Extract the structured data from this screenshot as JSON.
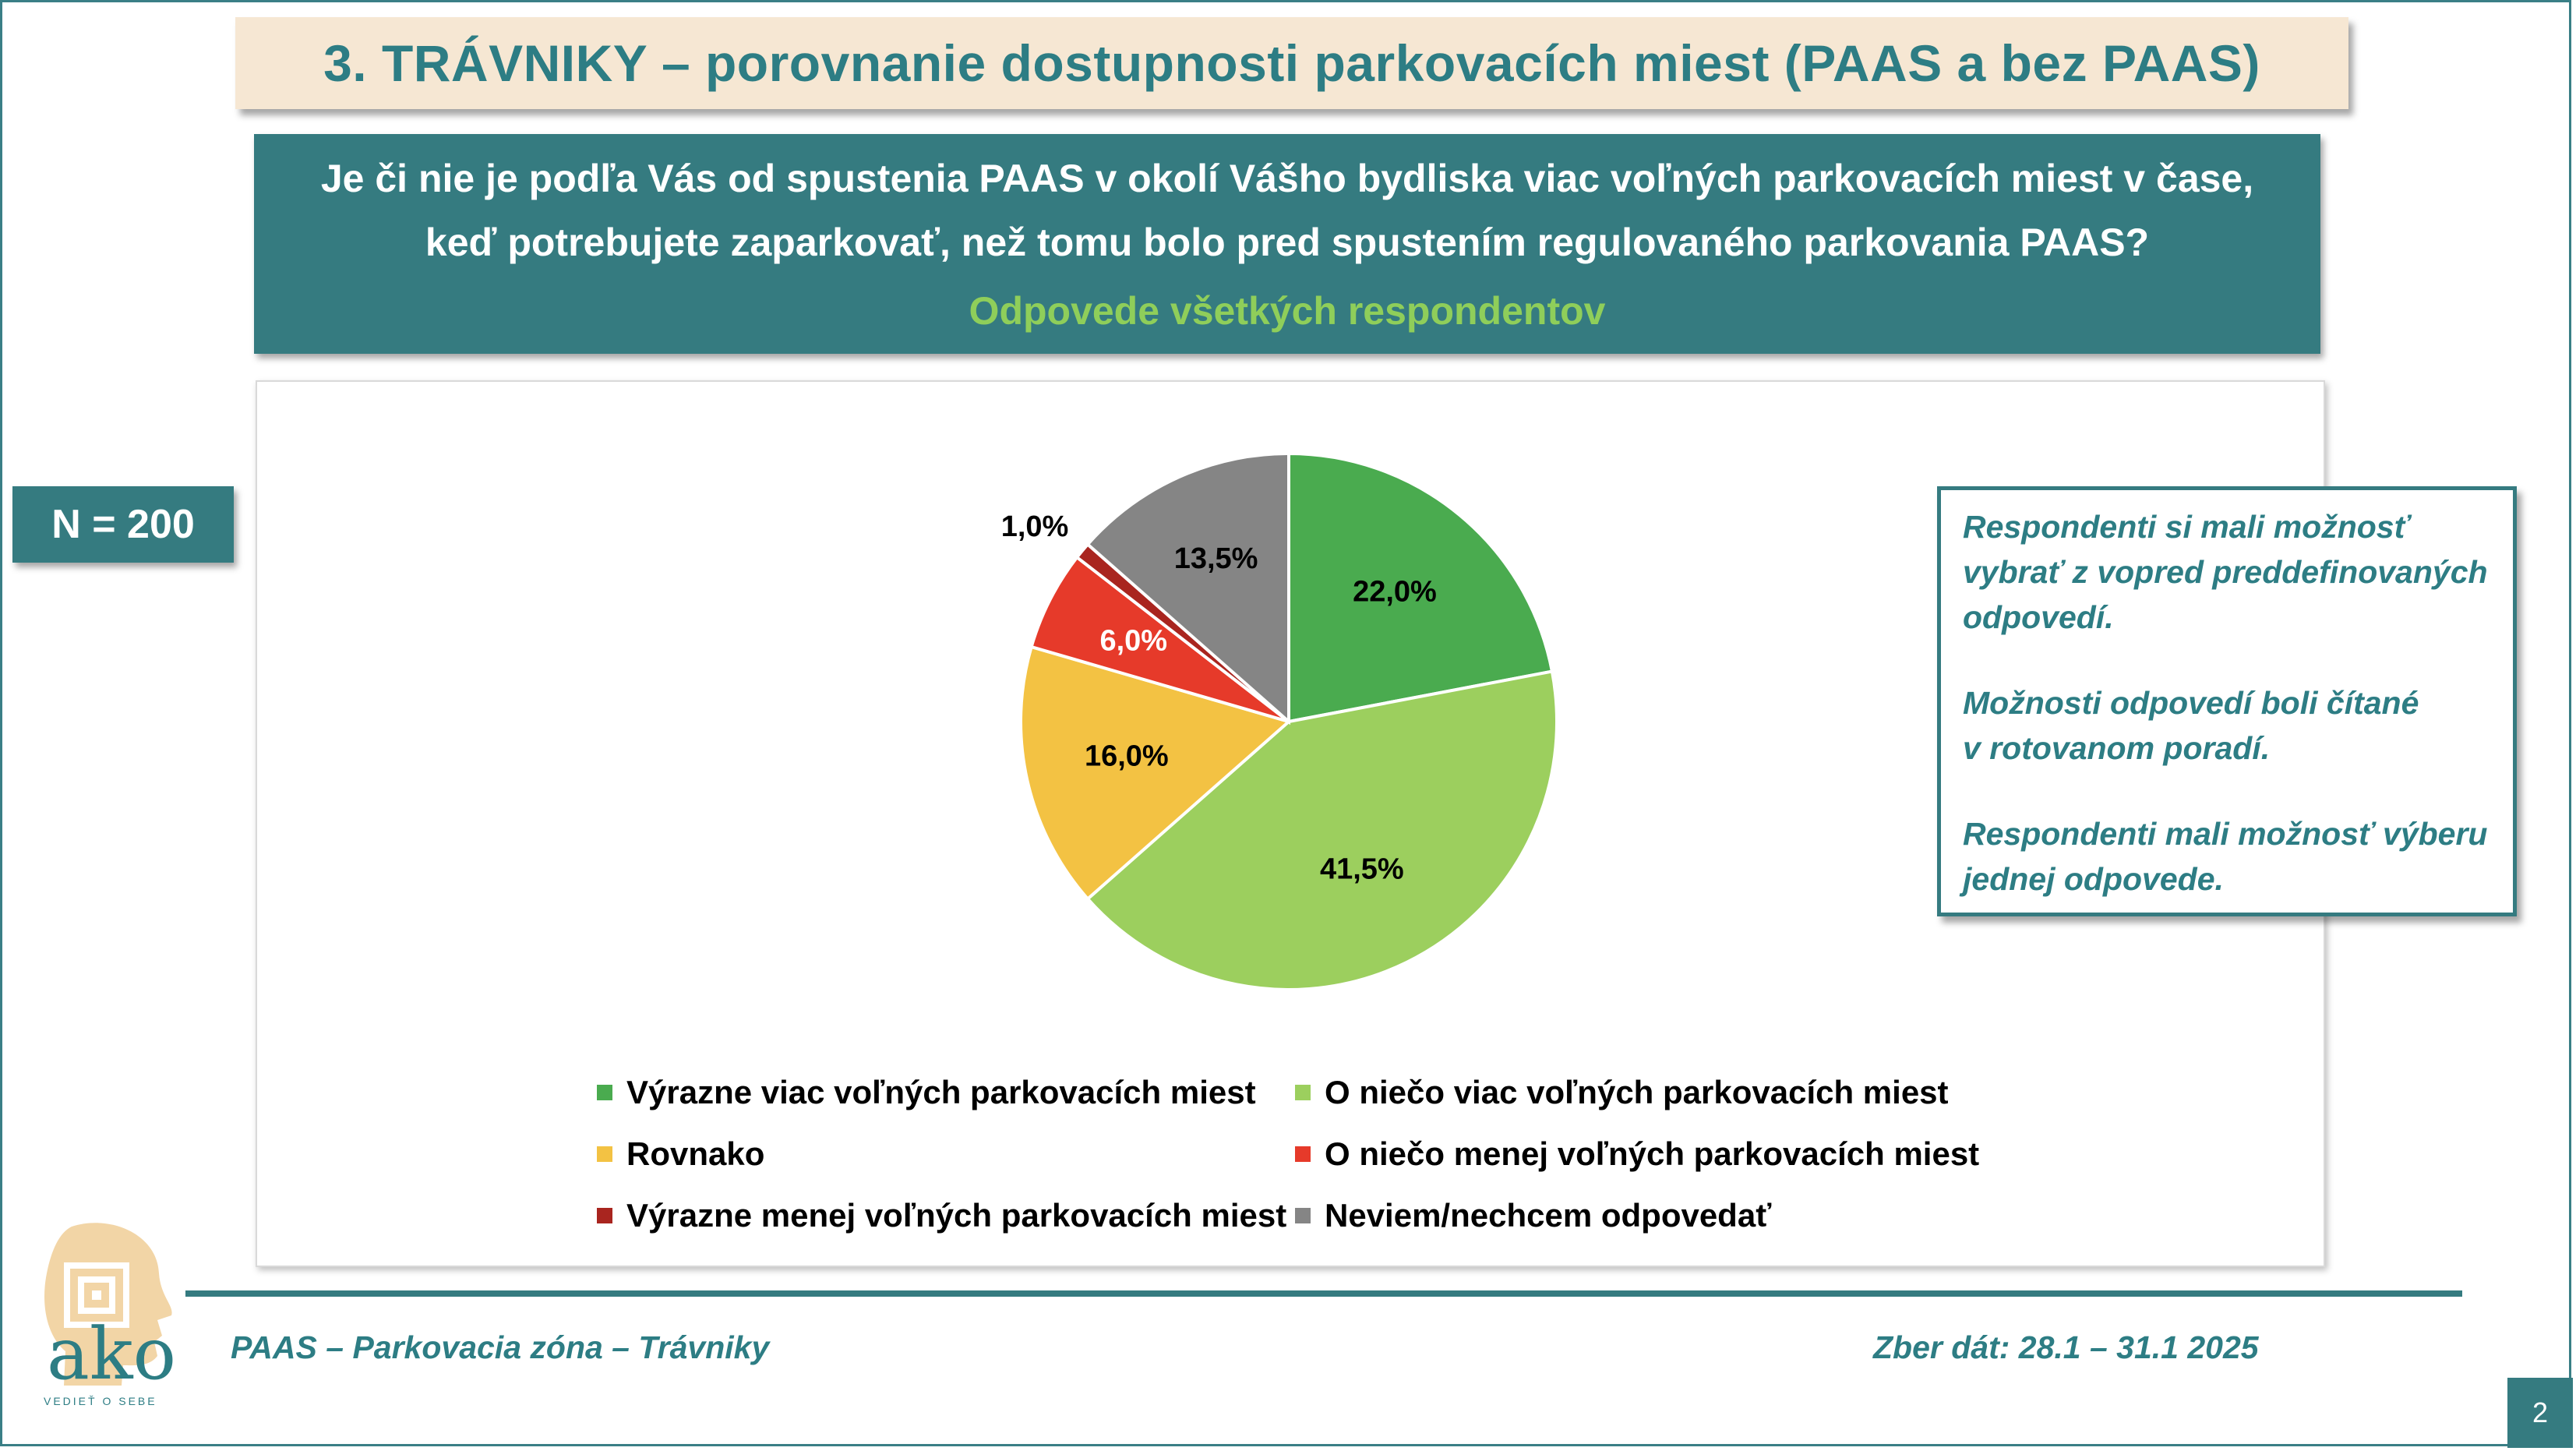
{
  "title": "3. TRÁVNIKY – porovnanie dostupnosti parkovacích miest (PAAS a bez PAAS)",
  "question": {
    "line1": "Je či nie je podľa Vás od spustenia PAAS v okolí Vášho bydliska viac  voľných parkovacích miest v čase,",
    "line2": "keď potrebujete zaparkovať, než tomu bolo pred spustením regulovaného parkovania PAAS?",
    "line3": "Odpovede všetkých respondentov"
  },
  "sample_size": "N = 200",
  "note": {
    "p1_l1": "Respondenti si mali možnosť",
    "p1_l2": "vybrať z vopred preddefinovaných",
    "p1_l3": "odpovedí.",
    "p2_l1": "Možnosti odpovedí boli čítané",
    "p2_l2": "v rotovanom poradí.",
    "p3_l1": "Respondenti mali možnosť výberu",
    "p3_l2": "jednej odpovede."
  },
  "footer": {
    "left": "PAAS – Parkovacia zóna – Trávniky",
    "right": "Zber dát: 28.1 – 31.1 2025",
    "page": "2"
  },
  "logo": {
    "text": "ako",
    "tagline": "VEDIEŤ O SEBE"
  },
  "chart_data": {
    "type": "pie",
    "start": "12 o'clock, clockwise",
    "slices": [
      {
        "label": "Výrazne viac voľných parkovacích miest",
        "value": 22.0,
        "display": "22,0%",
        "color": "#4aab4f"
      },
      {
        "label": "O niečo viac voľných parkovacích miest",
        "value": 41.5,
        "display": "41,5%",
        "color": "#9ccf5e"
      },
      {
        "label": "Rovnako",
        "value": 16.0,
        "display": "16,0%",
        "color": "#f3c243"
      },
      {
        "label": "O niečo menej voľných parkovacích miest",
        "value": 6.0,
        "display": "6,0%",
        "color": "#e63a2a"
      },
      {
        "label": "Výrazne menej voľných parkovacích miest",
        "value": 1.0,
        "display": "1,0%",
        "color": "#a9251f"
      },
      {
        "label": "Neviem/nechcem odpovedať",
        "value": 13.5,
        "display": "13,5%",
        "color": "#858585"
      }
    ],
    "legend_position": "bottom"
  }
}
